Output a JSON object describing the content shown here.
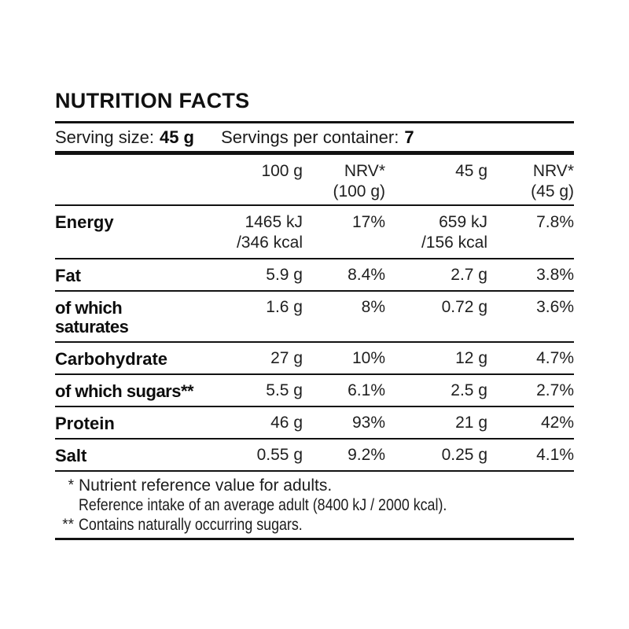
{
  "title": "NUTRITION FACTS",
  "serving": {
    "size_label": "Serving size:",
    "size_value": "45 g",
    "container_label": "Servings per container:",
    "container_value": "7"
  },
  "header": {
    "cols": [
      "100 g",
      "NRV*\n(100 g)",
      "45 g",
      "NRV*\n(45 g)"
    ]
  },
  "rows": [
    {
      "label": "Energy",
      "per100": "1465 kJ\n/346 kcal",
      "nrv100": "17%",
      "per45": "659 kJ\n/156 kcal",
      "nrv45": "7.8%"
    },
    {
      "label": "Fat",
      "per100": "5.9 g",
      "nrv100": "8.4%",
      "per45": "2.7 g",
      "nrv45": "3.8%"
    },
    {
      "label": "of which\nsaturates",
      "per100": "1.6 g",
      "nrv100": "8%",
      "per45": "0.72 g",
      "nrv45": "3.6%"
    },
    {
      "label": "Carbohydrate",
      "per100": "27 g",
      "nrv100": "10%",
      "per45": "12 g",
      "nrv45": "4.7%"
    },
    {
      "label": "of which sugars**",
      "per100": "5.5 g",
      "nrv100": "6.1%",
      "per45": "2.5 g",
      "nrv45": "2.7%"
    },
    {
      "label": "Protein",
      "per100": "46 g",
      "nrv100": "93%",
      "per45": "21 g",
      "nrv45": "42%"
    },
    {
      "label": "Salt",
      "per100": "0.55 g",
      "nrv100": "9.2%",
      "per45": "0.25 g",
      "nrv45": "4.1%"
    }
  ],
  "footnotes": [
    {
      "marker": "*",
      "text": "Nutrient reference value for adults."
    },
    {
      "marker": "",
      "text": "Reference intake of an average adult (8400 kJ / 2000 kcal)."
    },
    {
      "marker": "**",
      "text": "Contains naturally occurring sugars."
    }
  ],
  "colors": {
    "text": "#1a1a1a",
    "rule": "#121212",
    "background": "#ffffff"
  }
}
